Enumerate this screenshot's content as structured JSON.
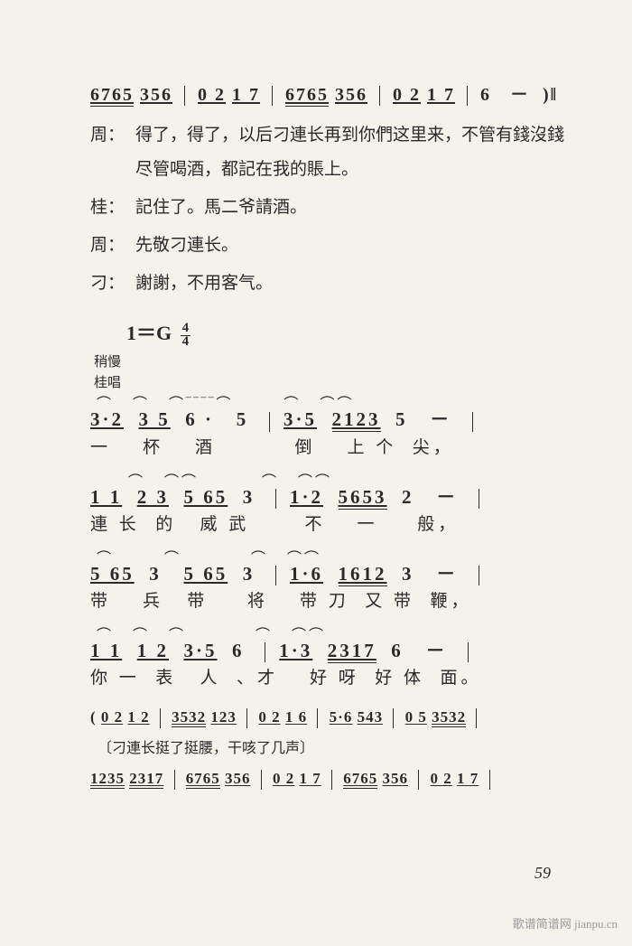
{
  "top_score": "6765 356 | 0 2  1 7 | 6765 356 | 0 2  1 7 | 6   －  )‖",
  "dialogue": [
    {
      "speaker": "周：",
      "text": "得了，得了，以后刁連长再到你們这里来，不管有錢沒錢尽管喝酒，都記在我的賬上。"
    },
    {
      "speaker": "桂：",
      "text": "記住了。馬二爷請酒。"
    },
    {
      "speaker": "周：",
      "text": "先敬刁連长。"
    },
    {
      "speaker": "刁：",
      "text": "謝謝，不用客气。"
    }
  ],
  "key": "1＝G",
  "time_top": "4",
  "time_bot": "4",
  "tempo_marks": [
    "稍慢",
    "桂唱"
  ],
  "phrases": [
    {
      "slurs": " ⌒    ⌒    ⌒‾‾‾‾⌒          ⌒    ⌒⌒",
      "notes": "3·2   3 5   6  ·    5   |  3·5   2123   5   －   |",
      "lyrics": "一    杯    酒          倒    上 个  尖，"
    },
    {
      "slurs": "       ⌒    ⌒⌒            ⌒    ⌒⌒",
      "notes": "1 1   2 3   5 65   3   |  1·2   5653   2   －   |",
      "lyrics": "連 长  的   威 武       不    一     般，"
    },
    {
      "slurs": " ⌒          ⌒             ⌒    ⌒⌒",
      "notes": "5 65  3    5 65   3   |  1·6   1612   3   －   |",
      "lyrics": "带    兵   带     将    带 刀  又 带  鞭，"
    },
    {
      "slurs": " ⌒    ⌒    ⌒              ⌒    ⌒⌒",
      "notes": "1 1   1 2   3·5   6   |  1·3   2317   6   －   |",
      "lyrics": "你 一  表   人  、才    好 呀  好 体  面。"
    }
  ],
  "interlude1": "( 0 2 1 2 | 3532  12 3 | 0 2  1 6 | 5·6  54 3 | 0 5  3532 |",
  "stage_direction": "〔刁連长挺了挺腰，干咳了几声〕",
  "interlude2": "1235 2317 | 6765 35 6 | 0 2  1 7 | 6765 35 6 | 0 2  1 7 |",
  "page_number": "59",
  "watermark": "歌谱简谱网 jianpu.cn",
  "colors": {
    "bg": "#f5f2ec",
    "text": "#2a2a2a",
    "wm": "#9a9a9a"
  }
}
